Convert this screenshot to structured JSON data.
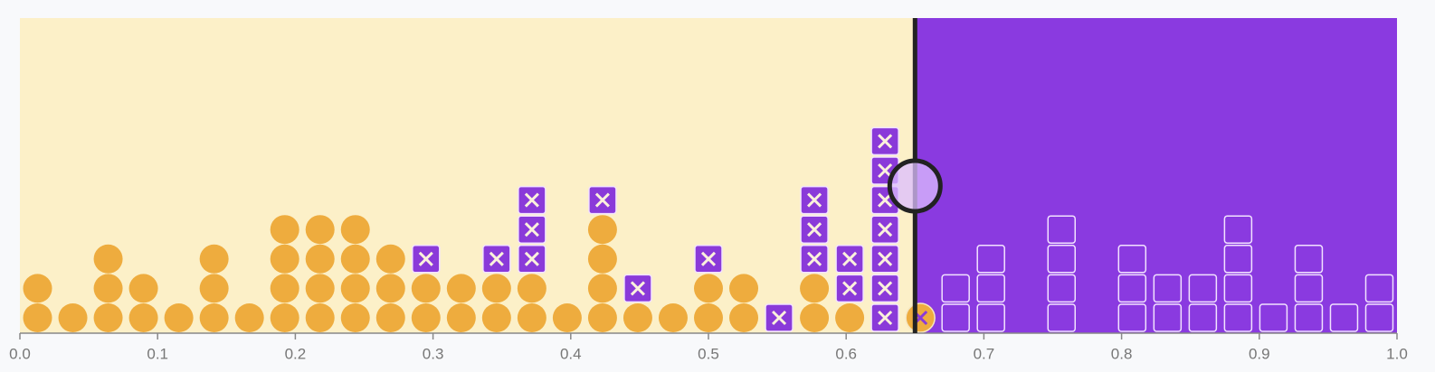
{
  "chart_data": {
    "type": "threshold-dotplot",
    "circles": [
      2,
      1,
      3,
      2,
      1,
      3,
      1,
      4,
      4,
      4,
      3,
      2,
      2,
      2,
      2,
      1,
      4,
      1,
      1,
      2,
      2,
      0,
      2,
      1,
      0,
      1,
      0,
      0,
      0,
      0,
      0,
      0,
      0,
      0,
      0,
      0,
      0,
      0,
      0
    ],
    "squares": [
      0,
      0,
      0,
      0,
      0,
      0,
      0,
      0,
      0,
      0,
      0,
      1,
      0,
      1,
      3,
      0,
      1,
      1,
      0,
      1,
      0,
      1,
      3,
      2,
      7,
      0,
      2,
      3,
      0,
      4,
      0,
      3,
      2,
      2,
      4,
      1,
      3,
      1,
      2
    ],
    "threshold": 0.65,
    "xlim": [
      0,
      1
    ],
    "xticks": [
      {
        "value": 0,
        "label": "0.0"
      },
      0.1,
      0.2,
      0.3,
      0.4,
      0.5,
      0.6,
      0.7,
      0.8,
      0.9,
      {
        "value": 1,
        "label": "1.0"
      }
    ],
    "colors": {
      "below": "#fcf0c8",
      "above": "#8a3ae0",
      "circle": "#eeac3e",
      "square": "#8a3ad9"
    }
  }
}
